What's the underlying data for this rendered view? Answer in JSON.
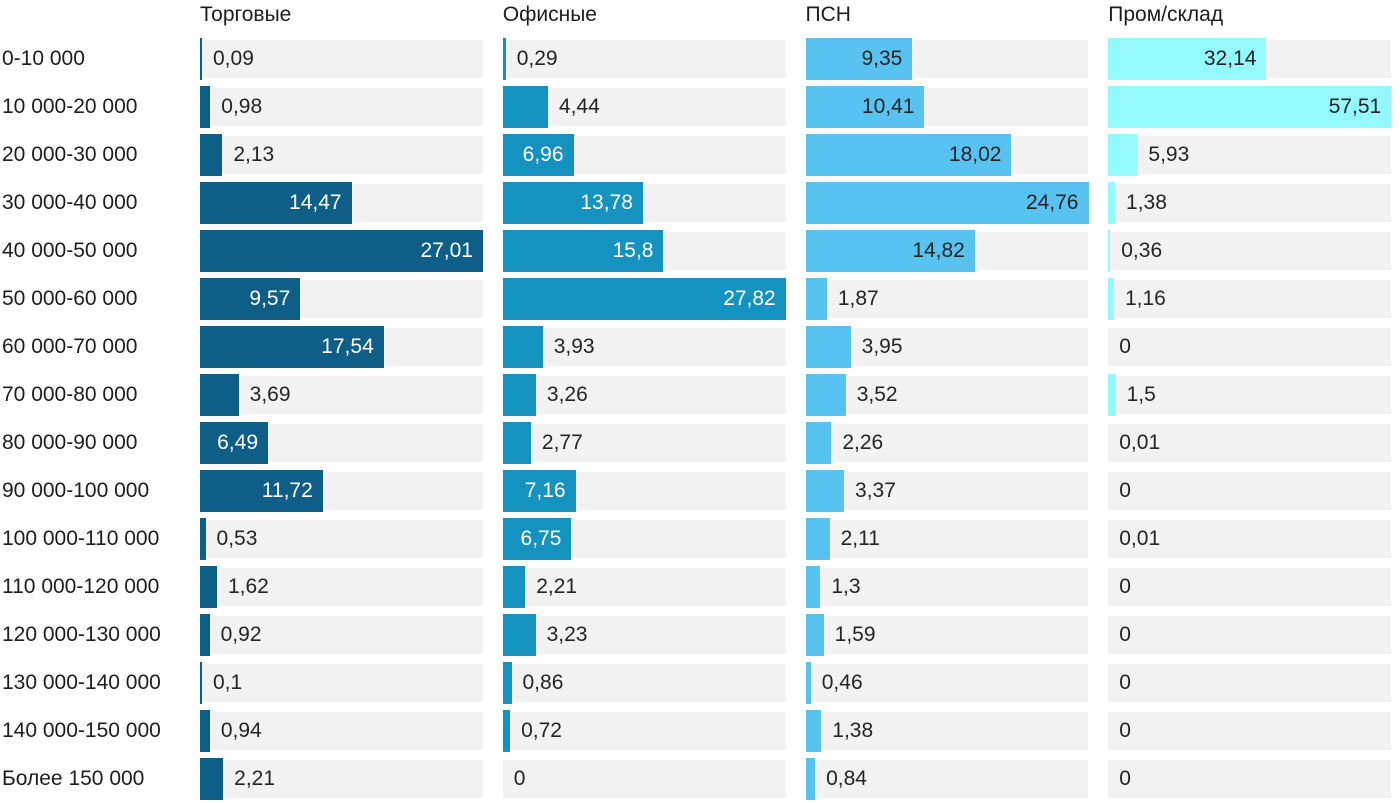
{
  "chart_data": {
    "type": "bar",
    "orientation": "horizontal",
    "grid": false,
    "legend_position": "column-headers-top",
    "value_decimal_separator": ",",
    "track_color": "#f2f2f2",
    "label_text_color": "#1d1d1d",
    "outside_value_color": "#242424",
    "categories": [
      "0-10 000",
      "10 000-20 000",
      "20 000-30 000",
      "30 000-40 000",
      "40 000-50 000",
      "50 000-60 000",
      "60 000-70 000",
      "70 000-80 000",
      "80 000-90 000",
      "90 000-100 000",
      "100 000-110 000",
      "110 000-120 000",
      "120 000-130 000",
      "130 000-140 000",
      "140 000-150 000",
      "Более 150 000"
    ],
    "series": [
      {
        "name": "Торговые",
        "color": "#0e5e88",
        "inside_label_color": "#ffffff",
        "values": [
          0.09,
          0.98,
          2.13,
          14.47,
          27.01,
          9.57,
          17.54,
          3.69,
          6.49,
          11.72,
          0.53,
          1.62,
          0.92,
          0.1,
          0.94,
          2.21
        ]
      },
      {
        "name": "Офисные",
        "color": "#1492c0",
        "inside_label_color": "#ffffff",
        "values": [
          0.29,
          4.44,
          6.96,
          13.78,
          15.8,
          27.82,
          3.93,
          3.26,
          2.77,
          7.16,
          6.75,
          2.21,
          3.23,
          0.86,
          0.72,
          0
        ]
      },
      {
        "name": "ПСН",
        "color": "#58c3f0",
        "inside_label_color": "#242424",
        "values": [
          9.35,
          10.41,
          18.02,
          24.76,
          14.82,
          1.87,
          3.95,
          3.52,
          2.26,
          3.37,
          2.11,
          1.3,
          1.59,
          0.46,
          1.38,
          0.84
        ]
      },
      {
        "name": "Пром/склад",
        "color": "#93f9fc",
        "inside_label_color": "#242424",
        "values": [
          32.14,
          57.51,
          5.93,
          1.38,
          0.36,
          1.16,
          0,
          1.5,
          0.01,
          0,
          0.01,
          0,
          0,
          0,
          0,
          0
        ]
      }
    ],
    "series_scale_max": [
      27.01,
      27.82,
      24.76,
      57.51
    ]
  }
}
